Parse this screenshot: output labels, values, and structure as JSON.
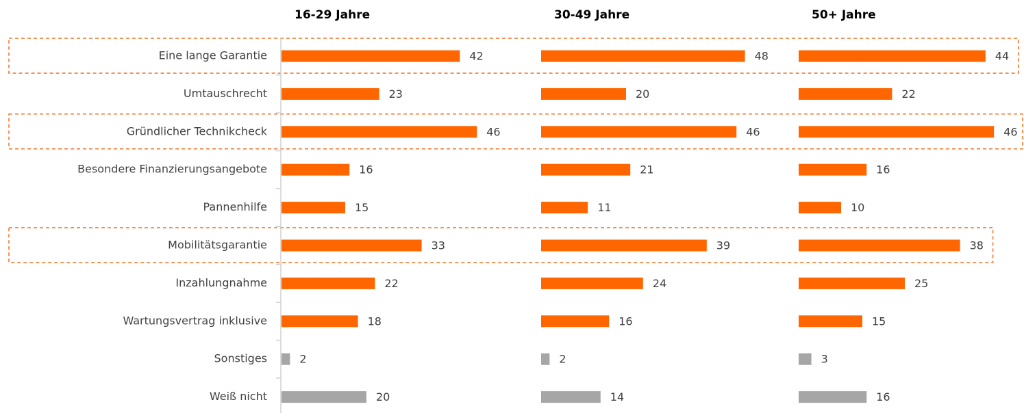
{
  "chart_data": {
    "type": "bar",
    "categories": [
      "Eine lange Garantie",
      "Umtauschrecht",
      "Gründlicher Technikcheck",
      "Besondere Finanzierungsangebote",
      "Pannenhilfe",
      "Mobilitätsgarantie",
      "Inzahlungnahme",
      "Wartungsvertrag inklusive",
      "Sonstiges",
      "Weiß nicht"
    ],
    "series": [
      {
        "name": "16-29 Jahre",
        "values": [
          42,
          23,
          46,
          16,
          15,
          33,
          22,
          18,
          2,
          20
        ]
      },
      {
        "name": "30-49 Jahre",
        "values": [
          48,
          20,
          46,
          21,
          11,
          39,
          24,
          16,
          2,
          14
        ]
      },
      {
        "name": "50+ Jahre",
        "values": [
          44,
          22,
          46,
          16,
          10,
          38,
          25,
          15,
          3,
          16
        ]
      }
    ],
    "bar_colors": [
      "#ff6600",
      "#ff6600",
      "#ff6600",
      "#ff6600",
      "#ff6600",
      "#ff6600",
      "#ff6600",
      "#ff6600",
      "#a6a6a6",
      "#a6a6a6"
    ],
    "highlighted": [
      0,
      2,
      5
    ],
    "highlight_color": "#f07020",
    "xlim": [
      0,
      60
    ]
  }
}
